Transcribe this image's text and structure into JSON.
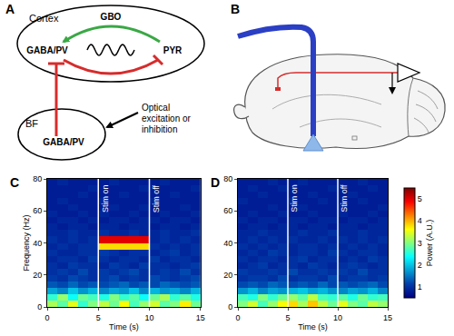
{
  "diagram": {
    "A": {
      "label": "A",
      "cortex": "Cortex",
      "gbo": "GBO",
      "cortex_cell": "GABA/PV",
      "pyr": "PYR",
      "bf": "BF",
      "bf_cell": "GABA/PV",
      "stim": [
        "Optical",
        "excitation or",
        "inhibition"
      ]
    },
    "B": {
      "label": "B"
    }
  },
  "chart_data": [
    {
      "type": "heatmap",
      "title": "C",
      "xlabel": "Time (s)",
      "ylabel": "Frequency (Hz)",
      "xlim": [
        0,
        15
      ],
      "xticks": [
        0,
        5,
        10,
        15
      ],
      "ylim": [
        0,
        80
      ],
      "yticks": [
        0,
        20,
        40,
        60,
        80
      ],
      "annotations": [
        {
          "x": 5,
          "text": "Stim on"
        },
        {
          "x": 10,
          "text": "Stim off"
        }
      ],
      "x": [
        0.5,
        1.5,
        2.5,
        3.5,
        4.5,
        5.5,
        6.5,
        7.5,
        8.5,
        9.5,
        10.5,
        11.5,
        12.5,
        13.5,
        14.5
      ],
      "y": [
        2,
        6,
        10,
        14,
        18,
        22,
        26,
        30,
        34,
        38,
        42,
        46,
        50,
        54,
        58,
        62,
        66,
        70,
        74,
        78
      ],
      "cells": [
        [
          3.2,
          2.8,
          3.5,
          2.6,
          3.0,
          3.3,
          2.9,
          3.6,
          2.7,
          3.1,
          3.4,
          2.8,
          3.0,
          3.7,
          2.9
        ],
        [
          2.6,
          3.1,
          2.4,
          2.9,
          2.7,
          2.5,
          3.0,
          2.6,
          2.8,
          2.4,
          2.9,
          3.2,
          2.6,
          2.8,
          2.5
        ],
        [
          1.8,
          1.6,
          2.0,
          1.7,
          1.9,
          1.6,
          1.8,
          1.7,
          2.0,
          1.6,
          1.9,
          1.7,
          1.8,
          1.6,
          1.9
        ],
        [
          1.3,
          1.2,
          1.4,
          1.2,
          1.3,
          1.2,
          1.3,
          1.4,
          1.2,
          1.3,
          1.2,
          1.4,
          1.3,
          1.2,
          1.3
        ],
        [
          1.1,
          1.0,
          1.2,
          1.1,
          1.0,
          1.1,
          1.2,
          1.0,
          1.1,
          1.0,
          1.2,
          1.1,
          1.0,
          1.1,
          1.2
        ],
        [
          1.0,
          1.1,
          1.0,
          1.2,
          1.0,
          1.1,
          1.0,
          1.1,
          1.2,
          1.0,
          1.0,
          1.1,
          1.0,
          1.2,
          1.0
        ],
        [
          1.0,
          0.9,
          1.1,
          1.0,
          1.0,
          0.9,
          1.1,
          1.0,
          0.9,
          1.1,
          1.0,
          1.0,
          0.9,
          1.0,
          1.1
        ],
        [
          0.9,
          1.0,
          1.0,
          0.9,
          1.1,
          1.0,
          0.9,
          1.0,
          1.0,
          0.9,
          1.1,
          0.9,
          1.0,
          1.0,
          0.9
        ],
        [
          1.0,
          0.9,
          0.9,
          1.0,
          1.0,
          1.1,
          1.0,
          0.9,
          1.0,
          1.0,
          0.9,
          1.0,
          1.1,
          0.9,
          1.0
        ],
        [
          0.9,
          1.0,
          0.9,
          1.0,
          1.0,
          3.8,
          3.8,
          3.8,
          3.8,
          3.8,
          1.0,
          0.9,
          1.0,
          0.9,
          1.0
        ],
        [
          1.0,
          0.9,
          1.0,
          0.9,
          1.0,
          5.0,
          5.0,
          5.0,
          5.0,
          5.0,
          0.9,
          1.0,
          0.9,
          1.0,
          0.9
        ],
        [
          0.9,
          0.9,
          1.0,
          0.9,
          0.9,
          1.0,
          0.9,
          0.9,
          1.0,
          0.9,
          0.9,
          1.0,
          0.9,
          0.9,
          1.0
        ],
        [
          0.9,
          0.8,
          0.9,
          0.9,
          0.8,
          0.9,
          0.9,
          0.8,
          0.9,
          0.9,
          0.8,
          0.9,
          0.9,
          0.8,
          0.9
        ],
        [
          0.8,
          0.9,
          0.9,
          0.8,
          0.9,
          0.8,
          0.9,
          0.9,
          0.8,
          0.9,
          0.9,
          0.8,
          0.9,
          0.9,
          0.8
        ],
        [
          0.9,
          0.8,
          0.8,
          0.9,
          0.8,
          0.9,
          0.8,
          0.8,
          0.9,
          0.8,
          0.8,
          0.9,
          0.8,
          0.8,
          0.9
        ],
        [
          0.8,
          0.8,
          0.9,
          0.8,
          0.8,
          0.8,
          0.9,
          0.8,
          0.8,
          0.9,
          0.8,
          0.8,
          0.8,
          0.9,
          0.8
        ],
        [
          0.8,
          0.9,
          0.8,
          0.8,
          0.8,
          0.9,
          0.8,
          0.8,
          0.8,
          0.8,
          0.9,
          0.8,
          0.8,
          0.8,
          0.8
        ],
        [
          0.8,
          0.8,
          0.8,
          0.9,
          0.8,
          0.8,
          0.8,
          0.9,
          0.8,
          0.8,
          0.8,
          0.8,
          0.9,
          0.8,
          0.8
        ],
        [
          0.8,
          0.8,
          0.8,
          0.8,
          0.9,
          0.8,
          0.8,
          0.8,
          0.8,
          0.9,
          0.8,
          0.8,
          0.8,
          0.8,
          0.9
        ],
        [
          0.8,
          0.9,
          0.8,
          0.8,
          0.8,
          0.8,
          0.9,
          0.8,
          0.8,
          0.8,
          0.8,
          0.9,
          0.8,
          0.8,
          0.8
        ]
      ]
    },
    {
      "type": "heatmap",
      "title": "D",
      "xlabel": "Time (s)",
      "xlim": [
        0,
        15
      ],
      "xticks": [
        0,
        5,
        10,
        15
      ],
      "ylim": [
        0,
        80
      ],
      "yticks": [
        0,
        20,
        40,
        60,
        80
      ],
      "annotations": [
        {
          "x": 5,
          "text": "Stim on"
        },
        {
          "x": 10,
          "text": "Stim off"
        }
      ],
      "color": "Jet",
      "colorbar": {
        "range": [
          0.5,
          5.5
        ],
        "ticks": [
          1,
          2,
          3,
          4,
          5
        ],
        "title": "Power (A.U.)"
      },
      "x": [
        0.5,
        1.5,
        2.5,
        3.5,
        4.5,
        5.5,
        6.5,
        7.5,
        8.5,
        9.5,
        10.5,
        11.5,
        12.5,
        13.5,
        14.5
      ],
      "y": [
        2,
        6,
        10,
        14,
        18,
        22,
        26,
        30,
        34,
        38,
        42,
        46,
        50,
        54,
        58,
        62,
        66,
        70,
        74,
        78
      ],
      "cells": [
        [
          3.0,
          3.4,
          2.7,
          3.1,
          3.6,
          3.8,
          3.2,
          3.9,
          3.3,
          2.9,
          3.5,
          3.0,
          2.8,
          3.3,
          3.1
        ],
        [
          2.7,
          2.5,
          3.0,
          2.6,
          2.9,
          3.1,
          2.8,
          3.3,
          2.7,
          2.6,
          2.8,
          2.5,
          2.9,
          2.6,
          2.7
        ],
        [
          1.7,
          1.9,
          1.6,
          1.8,
          1.7,
          1.9,
          2.0,
          1.8,
          1.9,
          1.7,
          1.6,
          1.8,
          1.7,
          1.9,
          1.6
        ],
        [
          1.2,
          1.3,
          1.2,
          1.4,
          1.3,
          1.2,
          1.3,
          1.2,
          1.4,
          1.2,
          1.3,
          1.2,
          1.3,
          1.4,
          1.2
        ],
        [
          1.0,
          1.1,
          1.1,
          1.0,
          1.2,
          1.0,
          1.1,
          1.1,
          1.0,
          1.2,
          1.0,
          1.1,
          1.1,
          1.0,
          1.1
        ],
        [
          1.1,
          1.0,
          1.0,
          1.1,
          1.0,
          1.2,
          1.0,
          1.0,
          1.1,
          1.0,
          1.1,
          1.0,
          1.2,
          1.0,
          1.0
        ],
        [
          0.9,
          1.0,
          1.1,
          0.9,
          1.0,
          1.0,
          0.9,
          1.1,
          1.0,
          0.9,
          1.0,
          1.1,
          1.0,
          0.9,
          1.0
        ],
        [
          1.0,
          0.9,
          1.0,
          1.0,
          0.9,
          1.0,
          1.1,
          0.9,
          1.0,
          1.0,
          0.9,
          1.0,
          0.9,
          1.1,
          1.0
        ],
        [
          0.9,
          1.0,
          0.9,
          1.1,
          1.0,
          0.9,
          1.0,
          1.0,
          0.9,
          1.1,
          1.0,
          0.9,
          1.0,
          1.0,
          0.9
        ],
        [
          1.0,
          0.9,
          1.0,
          0.9,
          1.0,
          0.9,
          1.0,
          1.0,
          0.9,
          1.0,
          0.9,
          1.0,
          0.9,
          1.0,
          0.9
        ],
        [
          0.9,
          1.0,
          0.9,
          1.0,
          0.9,
          1.0,
          0.9,
          0.9,
          1.0,
          0.9,
          1.0,
          0.9,
          1.0,
          0.9,
          1.0
        ],
        [
          0.9,
          0.9,
          1.0,
          0.9,
          0.9,
          0.9,
          1.0,
          0.9,
          0.9,
          1.0,
          0.9,
          0.9,
          1.0,
          0.9,
          0.9
        ],
        [
          0.8,
          0.9,
          0.9,
          0.8,
          0.9,
          0.9,
          0.8,
          0.9,
          0.9,
          0.8,
          0.9,
          0.9,
          0.8,
          0.9,
          0.9
        ],
        [
          0.9,
          0.8,
          0.9,
          0.9,
          0.8,
          0.9,
          0.9,
          0.8,
          0.9,
          0.9,
          0.8,
          0.9,
          0.9,
          0.8,
          0.9
        ],
        [
          0.8,
          0.9,
          0.8,
          0.8,
          0.9,
          0.8,
          0.8,
          0.9,
          0.8,
          0.8,
          0.9,
          0.8,
          0.8,
          0.9,
          0.8
        ],
        [
          0.8,
          0.8,
          0.8,
          0.9,
          0.8,
          0.8,
          0.9,
          0.8,
          0.8,
          0.8,
          0.9,
          0.8,
          0.8,
          0.8,
          0.9
        ],
        [
          0.9,
          0.8,
          0.8,
          0.8,
          0.8,
          0.9,
          0.8,
          0.8,
          0.9,
          0.8,
          0.8,
          0.8,
          0.9,
          0.8,
          0.8
        ],
        [
          0.8,
          0.8,
          0.9,
          0.8,
          0.8,
          0.8,
          0.8,
          0.9,
          0.8,
          0.8,
          0.8,
          0.9,
          0.8,
          0.8,
          0.8
        ],
        [
          0.8,
          0.9,
          0.8,
          0.8,
          0.9,
          0.8,
          0.8,
          0.8,
          0.8,
          0.9,
          0.8,
          0.8,
          0.8,
          0.9,
          0.8
        ],
        [
          0.8,
          0.8,
          0.8,
          0.9,
          0.8,
          0.8,
          0.9,
          0.8,
          0.8,
          0.8,
          0.8,
          0.8,
          0.9,
          0.8,
          0.8
        ]
      ]
    }
  ]
}
